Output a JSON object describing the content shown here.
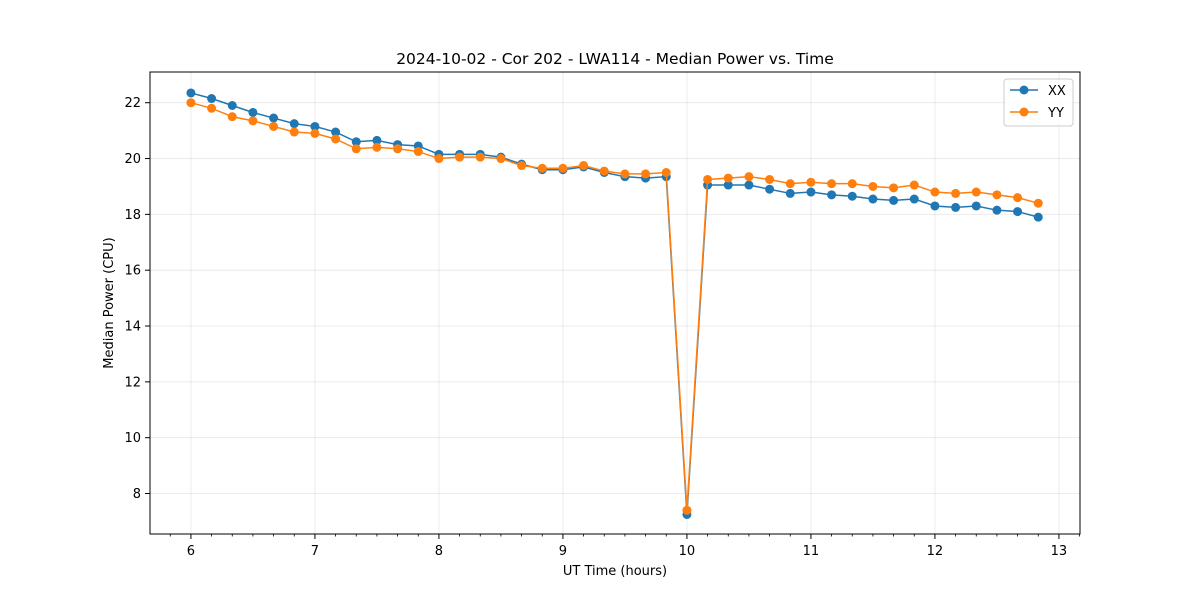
{
  "chart_data": {
    "type": "line",
    "title": "2024-10-02 - Cor 202 - LWA114 - Median Power vs. Time",
    "xlabel": "UT Time (hours)",
    "ylabel": "Median Power (CPU)",
    "xlim": [
      5.67,
      13.17
    ],
    "ylim": [
      6.55,
      23.1
    ],
    "xticks": [
      6,
      7,
      8,
      9,
      10,
      11,
      12,
      13
    ],
    "yticks": [
      8,
      10,
      12,
      14,
      16,
      18,
      20,
      22
    ],
    "grid": true,
    "legend_position": "top-right",
    "x": [
      6.0,
      6.1667,
      6.3333,
      6.5,
      6.6667,
      6.8333,
      7.0,
      7.1667,
      7.3333,
      7.5,
      7.6667,
      7.8333,
      8.0,
      8.1667,
      8.3333,
      8.5,
      8.6667,
      8.8333,
      9.0,
      9.1667,
      9.3333,
      9.5,
      9.6667,
      9.8333,
      10.0,
      10.1667,
      10.3333,
      10.5,
      10.6667,
      10.8333,
      11.0,
      11.1667,
      11.3333,
      11.5,
      11.6667,
      11.8333,
      12.0,
      12.1667,
      12.3333,
      12.5,
      12.6667,
      12.8333
    ],
    "series": [
      {
        "name": "XX",
        "color": "#1f77b4",
        "values": [
          22.35,
          22.15,
          21.9,
          21.65,
          21.45,
          21.25,
          21.15,
          20.95,
          20.6,
          20.65,
          20.5,
          20.45,
          20.15,
          20.15,
          20.15,
          20.05,
          19.8,
          19.6,
          19.6,
          19.7,
          19.5,
          19.35,
          19.3,
          19.35,
          7.25,
          19.05,
          19.05,
          19.05,
          18.9,
          18.75,
          18.8,
          18.7,
          18.65,
          18.55,
          18.5,
          18.55,
          18.3,
          18.25,
          18.3,
          18.15,
          18.1,
          17.9
        ]
      },
      {
        "name": "YY",
        "color": "#ff7f0e",
        "values": [
          22.0,
          21.8,
          21.5,
          21.35,
          21.15,
          20.95,
          20.9,
          20.7,
          20.35,
          20.4,
          20.35,
          20.25,
          20.0,
          20.05,
          20.05,
          20.0,
          19.75,
          19.65,
          19.65,
          19.75,
          19.55,
          19.45,
          19.45,
          19.5,
          7.4,
          19.25,
          19.3,
          19.35,
          19.25,
          19.1,
          19.15,
          19.1,
          19.1,
          19.0,
          18.95,
          19.05,
          18.8,
          18.75,
          18.8,
          18.7,
          18.6,
          18.4
        ]
      }
    ]
  }
}
